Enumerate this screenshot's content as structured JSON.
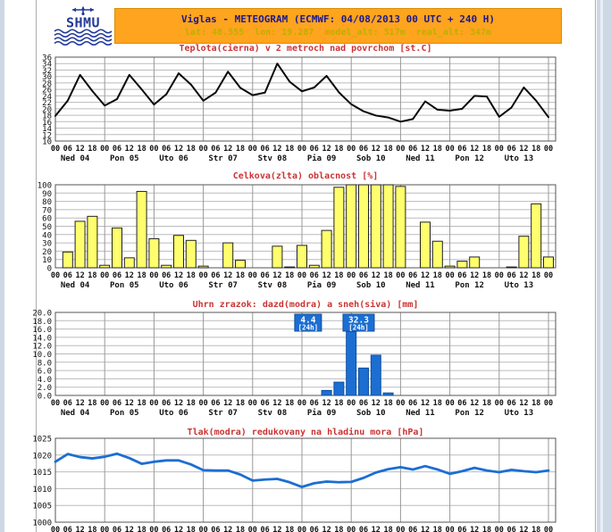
{
  "page": {
    "outer_bg": "#cdd8e5",
    "page_bg": "#ffffff"
  },
  "header": {
    "logo": {
      "text": "SHMU",
      "color": "#223a99"
    },
    "banner": {
      "bg": "#ffa41e",
      "border": "#db8c00",
      "title": "Viglas - METEOGRAM (ECMWF: 04/08/2013 00 UTC + 240 H)",
      "title_color": "#1a1a8e",
      "subtitle": "lat: 48.555  lon: 19.287  model_alt: 517m  real_alt: 347m",
      "subtitle_color": "#bfae00"
    }
  },
  "x_axis": {
    "hour_labels": [
      "00",
      "06",
      "12",
      "18"
    ],
    "day_labels": [
      "Ned 04",
      "Pon 05",
      "Uto 06",
      "Str 07",
      "Stv 08",
      "Pia 09",
      "Sob 10",
      "Ned 11",
      "Pon 12",
      "Uto 13"
    ],
    "steps_per_day": 4,
    "hours_per_step": 6
  },
  "chart_data": [
    {
      "id": "temperature",
      "type": "line",
      "title": "Teplota(cierna) v 2 metroch nad povrchom [st.C]",
      "line_color": "#0a0a0a",
      "line_width": 2,
      "grid": true,
      "ylim": [
        10,
        36
      ],
      "ytick_labels": [
        "36",
        "34",
        "32",
        "30",
        "28",
        "26",
        "24",
        "22",
        "20",
        "18",
        "16",
        "14",
        "12",
        "10"
      ],
      "values": [
        17.8,
        22.5,
        30.5,
        25.5,
        21.0,
        23.0,
        30.5,
        26.0,
        21.3,
        24.5,
        31.0,
        27.5,
        22.5,
        25.0,
        31.5,
        26.5,
        24.2,
        25.0,
        34.0,
        28.4,
        25.4,
        26.6,
        30.2,
        25.1,
        21.4,
        19.2,
        17.9,
        17.3,
        16.0,
        16.8,
        22.3,
        19.7,
        19.4,
        20.0,
        24.0,
        23.8,
        17.5,
        20.4,
        26.6,
        22.5,
        17.4
      ]
    },
    {
      "id": "cloudiness",
      "type": "bar",
      "title": "Celkova(zlta) oblacnost [%]",
      "bar_color": "#ffff6e",
      "bar_border": "#222222",
      "grid": true,
      "ylim": [
        0,
        100
      ],
      "ytick_labels": [
        "100",
        "90",
        "80",
        "70",
        "60",
        "50",
        "40",
        "30",
        "20",
        "10",
        "0"
      ],
      "values": [
        0,
        19,
        56,
        62,
        3,
        48,
        12,
        92,
        35,
        3,
        39,
        33,
        2,
        0,
        30,
        9,
        0,
        0,
        26,
        1,
        27,
        3,
        45,
        97,
        100,
        100,
        100,
        100,
        98,
        0,
        55,
        32,
        2,
        8,
        13,
        0,
        0,
        1,
        38,
        77,
        13
      ]
    },
    {
      "id": "precipitation",
      "type": "bar",
      "title": "Uhrn zrazok: dazd(modra) a sneh(siva) [mm]",
      "bar_color": "#1c6ed2",
      "bar_border": "#0f4f9e",
      "grid": true,
      "ylim": [
        0,
        20
      ],
      "ytick_labels": [
        "20.0",
        "18.0",
        "16.0",
        "14.0",
        "12.0",
        "10.0",
        "8.0",
        "6.0",
        "4.0",
        "2.0",
        "0.0"
      ],
      "values": [
        0,
        0,
        0,
        0,
        0,
        0,
        0,
        0,
        0,
        0,
        0,
        0,
        0,
        0,
        0,
        0,
        0,
        0,
        0,
        0,
        0,
        0,
        1.2,
        3.2,
        15.4,
        6.6,
        9.7,
        0.6,
        0,
        0,
        0,
        0,
        0,
        0,
        0,
        0,
        0,
        0,
        0,
        0,
        0
      ],
      "annotation_bg": "#1c6ed2",
      "annotation_text_color": "#ffffff",
      "annotations": [
        {
          "value": "4.4",
          "period": "[24h]",
          "center_step": 20.5,
          "width": 30
        },
        {
          "value": "32.3",
          "period": "[24h]",
          "center_step": 24.6,
          "width": 35
        }
      ]
    },
    {
      "id": "pressure",
      "type": "line",
      "title": "Tlak(modra) redukovany na hladinu mora [hPa]",
      "line_color": "#1c6ed2",
      "line_width": 2.8,
      "grid": true,
      "ylim": [
        1000,
        1025
      ],
      "ytick_labels": [
        "1025",
        "1020",
        "1015",
        "1010",
        "1005",
        "1000"
      ],
      "values": [
        1018.0,
        1020.3,
        1019.4,
        1019.0,
        1019.5,
        1020.4,
        1019.1,
        1017.4,
        1018.0,
        1018.4,
        1018.4,
        1017.2,
        1015.5,
        1015.4,
        1015.4,
        1014.2,
        1012.4,
        1012.7,
        1012.9,
        1011.9,
        1010.5,
        1011.6,
        1012.1,
        1011.9,
        1012.0,
        1013.2,
        1014.8,
        1015.8,
        1016.4,
        1015.7,
        1016.7,
        1015.7,
        1014.4,
        1015.2,
        1016.2,
        1015.4,
        1014.9,
        1015.6,
        1015.2,
        1014.9,
        1015.4
      ]
    }
  ]
}
